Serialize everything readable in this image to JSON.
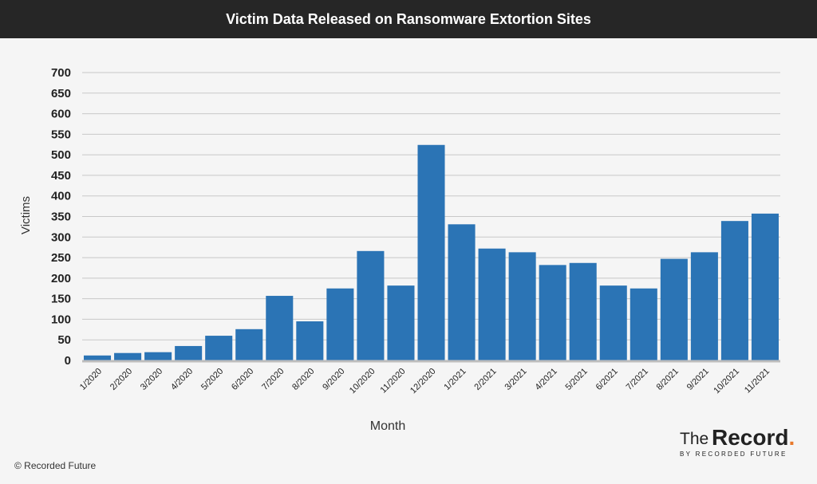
{
  "header": {
    "title": "Victim Data Released on Ransomware Extortion Sites"
  },
  "footer": {
    "copyright": "© Recorded Future"
  },
  "brand": {
    "the": "The",
    "record": "Record",
    "dot": ".",
    "by": "BY RECORDED FUTURE"
  },
  "colors": {
    "bar": "#2b74b5",
    "header_bg": "#262626",
    "accent": "#e8792b"
  },
  "chart_data": {
    "type": "bar",
    "title": "Victim Data Released on Ransomware Extortion Sites",
    "xlabel": "Month",
    "ylabel": "Victims",
    "ylim": [
      0,
      700
    ],
    "yticks": [
      0,
      50,
      100,
      150,
      200,
      250,
      300,
      350,
      400,
      450,
      500,
      550,
      600,
      650,
      700
    ],
    "grid": true,
    "categories": [
      "1/2020",
      "2/2020",
      "3/2020",
      "4/2020",
      "5/2020",
      "6/2020",
      "7/2020",
      "8/2020",
      "9/2020",
      "10/2020",
      "11/2020",
      "12/2020",
      "1/2021",
      "2/2021",
      "3/2021",
      "4/2021",
      "5/2021",
      "6/2021",
      "7/2021",
      "8/2021",
      "9/2021",
      "10/2021",
      "11/2021"
    ],
    "values": [
      12,
      18,
      20,
      35,
      60,
      76,
      157,
      95,
      175,
      266,
      182,
      524,
      331,
      272,
      263,
      232,
      237,
      182,
      175,
      247,
      263,
      339,
      357
    ]
  }
}
